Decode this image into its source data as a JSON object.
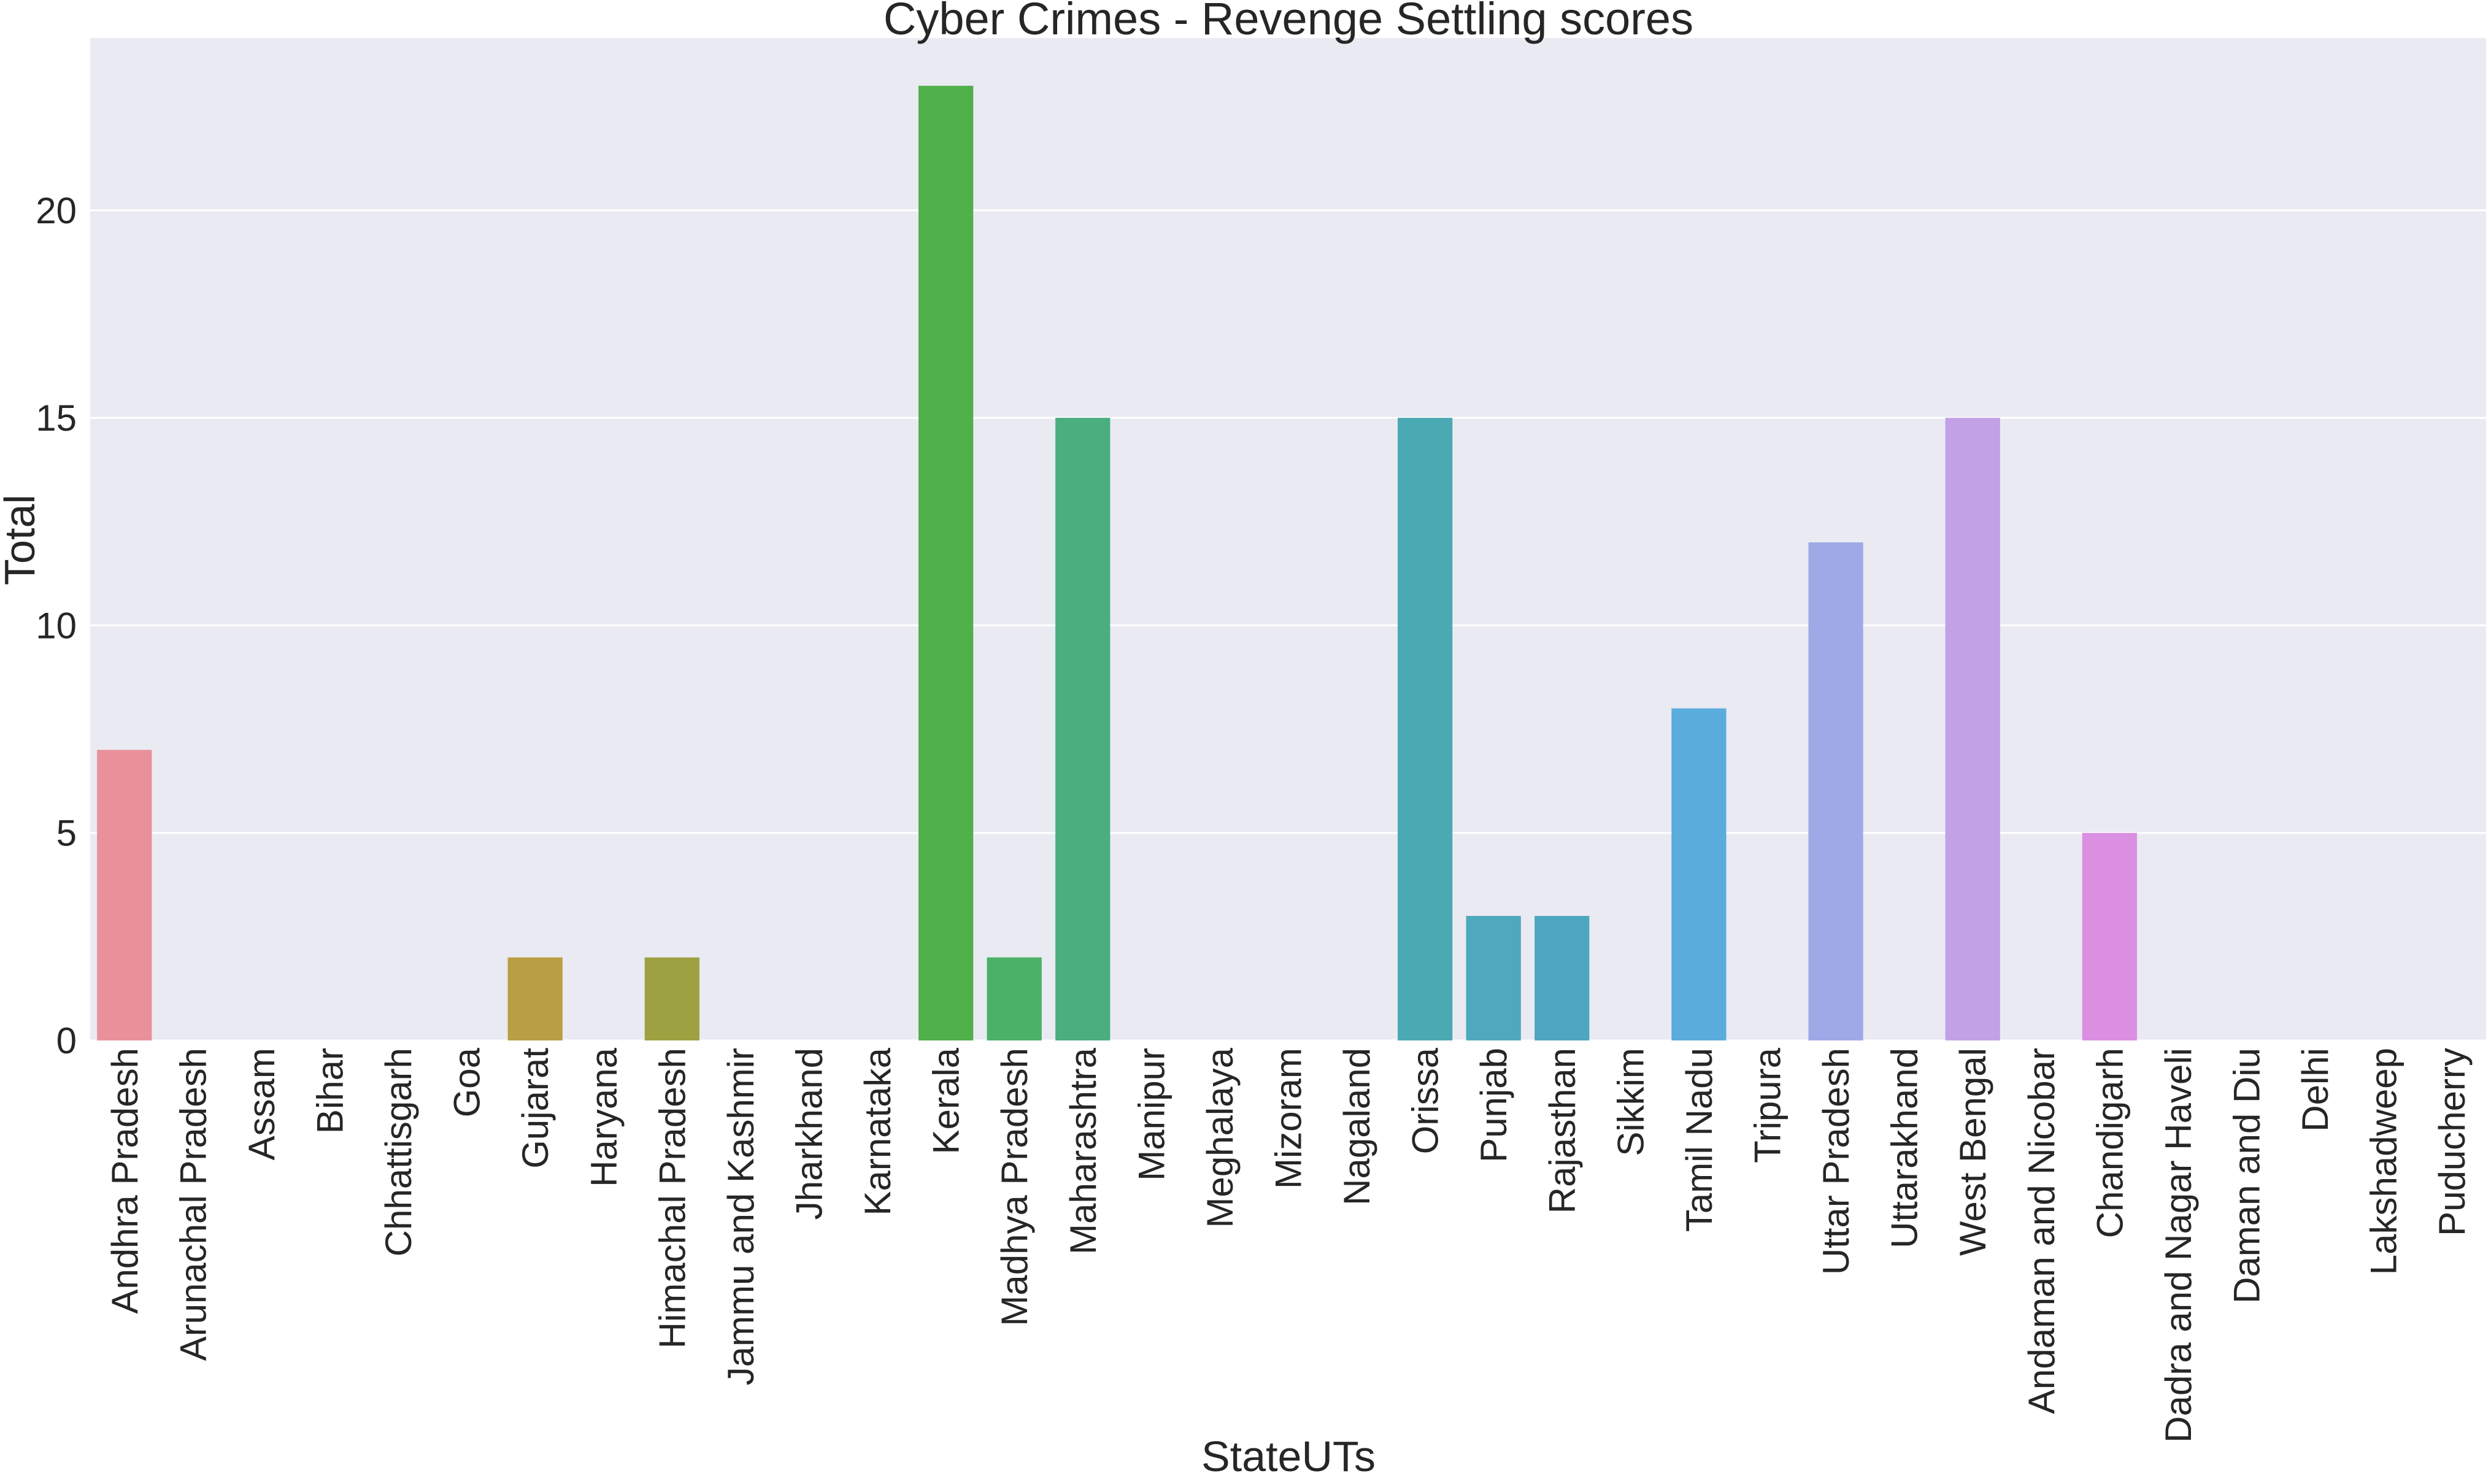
{
  "chart_data": {
    "type": "bar",
    "title": "Cyber Crimes - Revenge Settling scores",
    "xlabel": "StateUTs",
    "ylabel": "Total",
    "ylim": [
      0,
      24.15
    ],
    "yticks": [
      0,
      5,
      10,
      15,
      20
    ],
    "grid": true,
    "legend": "none",
    "categories": [
      "Andhra Pradesh",
      "Arunachal Pradesh",
      "Assam",
      "Bihar",
      "Chhattisgarh",
      "Goa",
      "Gujarat",
      "Haryana",
      "Himachal Pradesh",
      "Jammu and Kashmir",
      "Jharkhand",
      "Karnataka",
      "Kerala",
      "Madhya Pradesh",
      "Maharashtra",
      "Manipur",
      "Meghalaya",
      "Mizoram",
      "Nagaland",
      "Orissa",
      "Punjab",
      "Rajasthan",
      "Sikkim",
      "Tamil Nadu",
      "Tripura",
      "Uttar Pradesh",
      "Uttarakhand",
      "West Bengal",
      "Andaman and Nicobar",
      "Chandigarh",
      "Dadra and Nagar Haveli",
      "Daman and Diu",
      "Delhi",
      "Lakshadweep",
      "Puducherry"
    ],
    "values": [
      7,
      0,
      0,
      0,
      0,
      0,
      2,
      0,
      2,
      0,
      0,
      0,
      23,
      2,
      15,
      0,
      0,
      0,
      0,
      15,
      3,
      3,
      0,
      8,
      0,
      12,
      0,
      15,
      0,
      5,
      0,
      0,
      0,
      0,
      0
    ],
    "colors": [
      "#e8919a",
      "#e69676",
      "#d99a55",
      "#c9a044",
      "#bfa247",
      "#b8a447",
      "#b99e44",
      "#aaa444",
      "#9da141",
      "#85aa46",
      "#64b248",
      "#50b24a",
      "#50b04a",
      "#4bb167",
      "#4aae7f",
      "#48af8e",
      "#48ae9a",
      "#4aaca5",
      "#4aaaab",
      "#4ba9b3",
      "#4ea9bd",
      "#4ea6c1",
      "#52a8cd",
      "#5aacdc",
      "#7bade6",
      "#9fa9e7",
      "#b19fe7",
      "#c2a1e6",
      "#d394e0",
      "#db8fe1",
      "#e48ede",
      "#e68cd5",
      "#e78ac8",
      "#e78bb9",
      "#e88eaa"
    ]
  }
}
